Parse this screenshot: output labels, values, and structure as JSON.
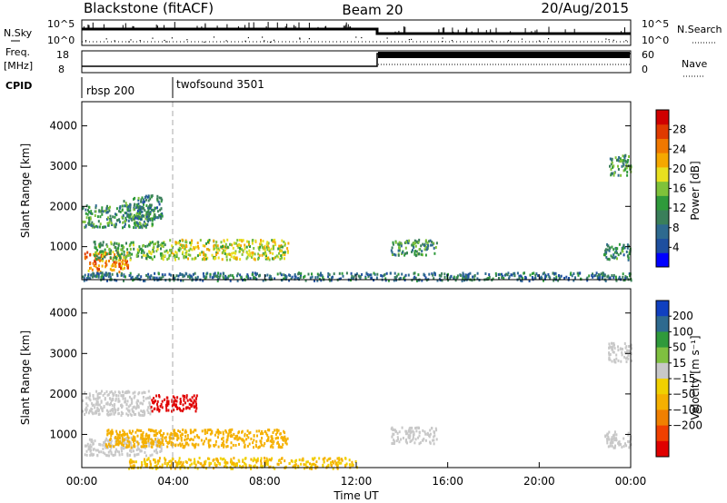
{
  "header": {
    "radar": "Blackstone (fitACF)",
    "beam": "Beam 20",
    "date": "20/Aug/2015"
  },
  "status_panels": {
    "nsky_label": "N.Sky",
    "nsky_ticks": [
      "10^5",
      "10^0"
    ],
    "nsearch_label": "N.Search",
    "nsearch_ticks": [
      "10^5",
      "10^0"
    ],
    "freq_label_line1": "Freq.",
    "freq_label_line2": "[MHz]",
    "freq_ticks": [
      "18",
      "8"
    ],
    "nave_label": "Nave",
    "nave_ticks": [
      "60",
      "0"
    ],
    "cpid_label": "CPID",
    "cpid_programs": [
      {
        "name": "rbsp 200",
        "start": 0
      },
      {
        "name": "twofsound 3501",
        "start": 4
      }
    ]
  },
  "colors": {
    "power": [
      "#0000ff",
      "#1e4f9f",
      "#2e6a8f",
      "#3a7f5a",
      "#2f9a3b",
      "#7fc23a",
      "#e8e020",
      "#f5a800",
      "#f07800",
      "#e03a00",
      "#d00000"
    ],
    "velocity": [
      "#e00000",
      "#f04000",
      "#f08000",
      "#f5b000",
      "#f0d000",
      "#c8c8c8",
      "#7fc040",
      "#2f9a3b",
      "#2e6a8f",
      "#1040c0"
    ]
  },
  "chart_data": [
    {
      "type": "heatmap",
      "panel": "power",
      "ylabel": "Slant Range [km]",
      "xlim": [
        0,
        24
      ],
      "ylim": [
        180,
        4600
      ],
      "yticks": [
        1000,
        2000,
        3000,
        4000
      ],
      "colorbar": {
        "label": "Power [dB]",
        "ticks": [
          4,
          8,
          12,
          16,
          20,
          24,
          28
        ],
        "range": [
          0,
          32
        ]
      },
      "regions": [
        {
          "t0": 0.1,
          "t1": 2.0,
          "r0": 400,
          "r1": 900,
          "value": 24
        },
        {
          "t0": 0.5,
          "t1": 3.8,
          "r0": 700,
          "r1": 1150,
          "value": 14
        },
        {
          "t0": 3.8,
          "t1": 9.0,
          "r0": 700,
          "r1": 1200,
          "value": 18
        },
        {
          "t0": 0.0,
          "t1": 3.2,
          "r0": 1500,
          "r1": 2050,
          "value": 12
        },
        {
          "t0": 1.8,
          "t1": 3.5,
          "r0": 1700,
          "r1": 2300,
          "value": 10
        },
        {
          "t0": 13.5,
          "t1": 15.5,
          "r0": 800,
          "r1": 1200,
          "value": 12
        },
        {
          "t0": 22.8,
          "t1": 24.0,
          "r0": 700,
          "r1": 1100,
          "value": 10
        },
        {
          "t0": 23.0,
          "t1": 24.0,
          "r0": 2800,
          "r1": 3300,
          "value": 12
        },
        {
          "t0": 0.0,
          "t1": 24.0,
          "r0": 180,
          "r1": 380,
          "value": 8
        }
      ]
    },
    {
      "type": "heatmap",
      "panel": "velocity",
      "xlabel": "Time UT",
      "ylabel": "Slant Range [km]",
      "xlim": [
        0,
        24
      ],
      "ylim": [
        180,
        4600
      ],
      "xticks": [
        "00:00",
        "04:00",
        "08:00",
        "12:00",
        "16:00",
        "20:00",
        "00:00"
      ],
      "yticks": [
        1000,
        2000,
        3000,
        4000
      ],
      "colorbar": {
        "label": "Velocity [m s⁻¹]",
        "ticks": [
          "200",
          "100",
          "50",
          "15",
          "−15",
          "−50",
          "−100",
          "−200"
        ]
      },
      "regions": [
        {
          "t0": 0.1,
          "t1": 3.5,
          "r0": 500,
          "r1": 950,
          "value": 0
        },
        {
          "t0": 1.0,
          "t1": 9.0,
          "r0": 700,
          "r1": 1150,
          "value": -40
        },
        {
          "t0": 0.0,
          "t1": 3.0,
          "r0": 1500,
          "r1": 2100,
          "value": 0
        },
        {
          "t0": 3.0,
          "t1": 5.0,
          "r0": 1600,
          "r1": 2000,
          "value": -250
        },
        {
          "t0": 13.5,
          "t1": 15.5,
          "r0": 800,
          "r1": 1200,
          "value": 0
        },
        {
          "t0": 22.8,
          "t1": 24.0,
          "r0": 700,
          "r1": 1100,
          "value": 0
        },
        {
          "t0": 23.0,
          "t1": 24.0,
          "r0": 2800,
          "r1": 3300,
          "value": 0
        },
        {
          "t0": 2.0,
          "t1": 12.0,
          "r0": 180,
          "r1": 450,
          "value": -30
        }
      ]
    }
  ]
}
